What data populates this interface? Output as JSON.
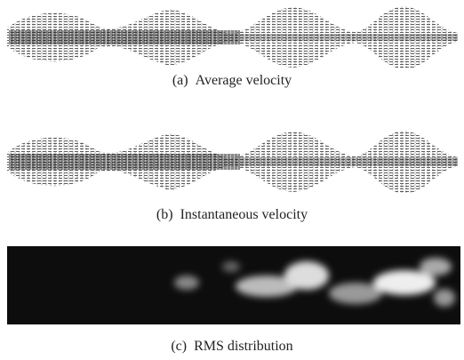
{
  "figure": {
    "panels": [
      {
        "label": "(a)",
        "caption": "Average velocity"
      },
      {
        "label": "(b)",
        "caption": "Instantaneous velocity"
      },
      {
        "label": "(c)",
        "caption": "RMS distribution"
      }
    ]
  }
}
